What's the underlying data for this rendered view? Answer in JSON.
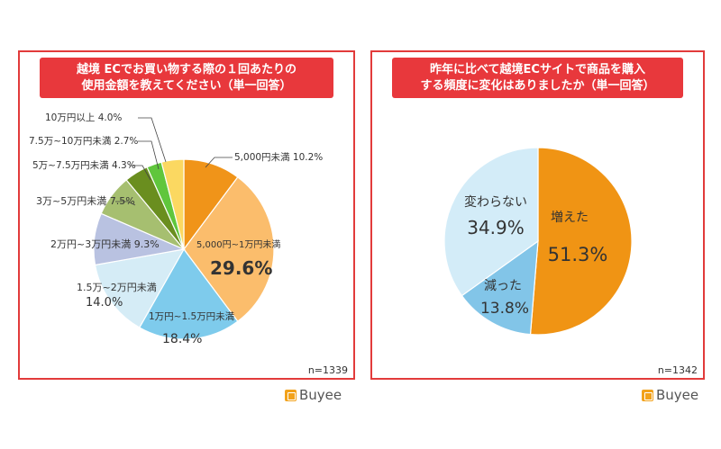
{
  "left": {
    "title_line1": "越境 ECでお買い物する際の１回あたりの",
    "title_line2": "使用金額を教えてください（単一回答）",
    "n": "n=1339",
    "logo": "Buyee"
  },
  "right": {
    "title_line1": "昨年に比べて越境ECサイトで商品を購入",
    "title_line2": "する頻度に変化はありましたか（単一回答）",
    "n": "n=1342",
    "logo": "Buyee"
  },
  "colors": {
    "frame": "#e23b3b",
    "title_bg": "#e8383c",
    "logo": "#f2a21b"
  },
  "chart_data": [
    {
      "type": "pie",
      "title": "越境 ECでお買い物する際の１回あたりの使用金額を教えてください（単一回答）",
      "n": 1339,
      "start": "12 o'clock, clockwise",
      "slices": [
        {
          "label": "5,000円未満",
          "value": 10.2,
          "value_text": "10.2%",
          "color": "#f09419"
        },
        {
          "label": "5,000円~1万円未満",
          "value": 29.6,
          "value_text": "29.6%",
          "color": "#fbbd6c"
        },
        {
          "label": "1万円~1.5万円未満",
          "value": 18.4,
          "value_text": "18.4%",
          "color": "#7ecbec"
        },
        {
          "label": "1.5万~2万円未満",
          "value": 14.0,
          "value_text": "14.0%",
          "color": "#d5ecf6"
        },
        {
          "label": "2万円~3万円未満",
          "value": 9.3,
          "value_text": "9.3%",
          "color": "#b9c2e1"
        },
        {
          "label": "3万~5万円未満",
          "value": 7.5,
          "value_text": "7.5%",
          "color": "#a6bf70"
        },
        {
          "label": "5万~7.5万円未満",
          "value": 4.3,
          "value_text": "4.3%",
          "color": "#6a8e1f"
        },
        {
          "label": "7.5万~10万円未満",
          "value": 2.7,
          "value_text": "2.7%",
          "color": "#60c63c"
        },
        {
          "label": "10万円以上",
          "value": 4.0,
          "value_text": "4.0%",
          "color": "#fbd861"
        }
      ]
    },
    {
      "type": "pie",
      "title": "昨年に比べて越境ECサイトで商品を購入する頻度に変化はありましたか（単一回答）",
      "n": 1342,
      "start": "12 o'clock, clockwise",
      "slices": [
        {
          "label": "増えた",
          "value": 51.3,
          "value_text": "51.3%",
          "color": "#f09414"
        },
        {
          "label": "減った",
          "value": 13.8,
          "value_text": "13.8%",
          "color": "#82c5e8"
        },
        {
          "label": "変わらない",
          "value": 34.9,
          "value_text": "34.9%",
          "color": "#d3ecf8"
        }
      ]
    }
  ]
}
